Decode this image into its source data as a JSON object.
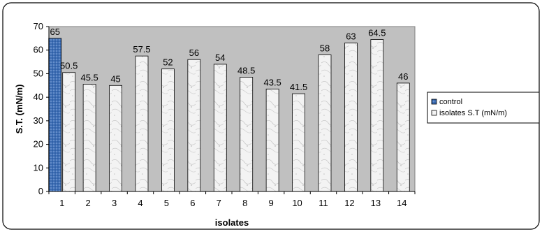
{
  "chart_data": {
    "type": "bar",
    "xlabel": "isolates",
    "ylabel": "S.T. (mN/m)",
    "ylim": [
      0,
      70
    ],
    "yticks": [
      0,
      10,
      20,
      30,
      40,
      50,
      60,
      70
    ],
    "categories": [
      "1",
      "2",
      "3",
      "4",
      "5",
      "6",
      "7",
      "8",
      "9",
      "10",
      "11",
      "12",
      "13",
      "14"
    ],
    "data_labels": [
      "65",
      "50.5",
      "45.5",
      "45",
      "57.5",
      "52",
      "56",
      "54",
      "48.5",
      "43.5",
      "41.5",
      "58",
      "63",
      "64.5",
      "46"
    ],
    "series": [
      {
        "name": "control",
        "x": [
          "1"
        ],
        "values": [
          65
        ],
        "color": "#3f6fb5"
      },
      {
        "name": "isolates S.T (mN/m)",
        "x": [
          "1",
          "2",
          "3",
          "4",
          "5",
          "6",
          "7",
          "8",
          "9",
          "10",
          "11",
          "12",
          "13",
          "14"
        ],
        "values": [
          50.5,
          45.5,
          45,
          57.5,
          52,
          56,
          54,
          48.5,
          43.5,
          41.5,
          58,
          63,
          64.5,
          46
        ],
        "color": "#f2f2f2"
      }
    ],
    "plot_background": "#c0c0c0",
    "grid": false,
    "legend_position": "right"
  }
}
